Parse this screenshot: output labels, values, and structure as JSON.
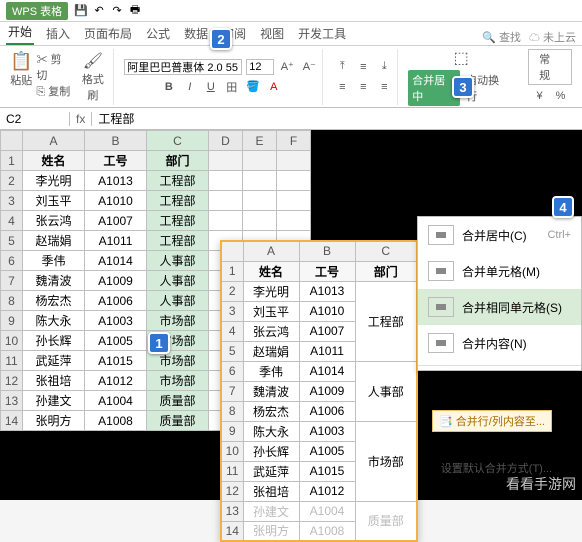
{
  "title": {
    "app": "WPS 表格"
  },
  "tabs": {
    "items": [
      "开始",
      "插入",
      "页面布局",
      "公式",
      "数据",
      "审阅",
      "视图",
      "开发工具"
    ],
    "active_index": 0,
    "right": {
      "search": "查找",
      "cloud": "未上云"
    }
  },
  "ribbon": {
    "paste": "粘贴",
    "copy": "复制",
    "formatpainter": "格式刷",
    "font_name": "阿里巴巴普惠体 2.0 55",
    "font_size": "12",
    "merge_label": "合并居中",
    "wrap_label": "自动换行",
    "general": "常规"
  },
  "formula": {
    "cell": "C2",
    "fx": "fx",
    "value": "工程部"
  },
  "columns": [
    "A",
    "B",
    "C",
    "D",
    "E",
    "F"
  ],
  "hdr": {
    "name": "姓名",
    "id": "工号",
    "dept": "部门"
  },
  "rows": [
    {
      "n": "李光明",
      "i": "A1013",
      "d": "工程部"
    },
    {
      "n": "刘玉平",
      "i": "A1010",
      "d": "工程部"
    },
    {
      "n": "张云鸿",
      "i": "A1007",
      "d": "工程部"
    },
    {
      "n": "赵瑞娟",
      "i": "A1011",
      "d": "工程部"
    },
    {
      "n": "季伟",
      "i": "A1014",
      "d": "人事部"
    },
    {
      "n": "魏清波",
      "i": "A1009",
      "d": "人事部"
    },
    {
      "n": "杨宏杰",
      "i": "A1006",
      "d": "人事部"
    },
    {
      "n": "陈大永",
      "i": "A1003",
      "d": "市场部"
    },
    {
      "n": "孙长辉",
      "i": "A1005",
      "d": "市场部"
    },
    {
      "n": "武延萍",
      "i": "A1015",
      "d": "市场部"
    },
    {
      "n": "张祖培",
      "i": "A1012",
      "d": "市场部"
    },
    {
      "n": "孙建文",
      "i": "A1004",
      "d": "质量部"
    },
    {
      "n": "张明方",
      "i": "A1008",
      "d": "质量部"
    }
  ],
  "overlay": {
    "cols": [
      "A",
      "B",
      "C"
    ],
    "hdr": {
      "name": "姓名",
      "id": "工号",
      "dept": "部门"
    },
    "groups": [
      {
        "dept": "工程部",
        "rows": [
          {
            "n": "李光明",
            "i": "A1013"
          },
          {
            "n": "刘玉平",
            "i": "A1010"
          },
          {
            "n": "张云鸿",
            "i": "A1007"
          },
          {
            "n": "赵瑞娟",
            "i": "A1011"
          }
        ]
      },
      {
        "dept": "人事部",
        "rows": [
          {
            "n": "季伟",
            "i": "A1014"
          },
          {
            "n": "魏清波",
            "i": "A1009"
          },
          {
            "n": "杨宏杰",
            "i": "A1006"
          }
        ]
      },
      {
        "dept": "市场部",
        "rows": [
          {
            "n": "陈大永",
            "i": "A1003"
          },
          {
            "n": "孙长辉",
            "i": "A1005"
          },
          {
            "n": "武延萍",
            "i": "A1015"
          },
          {
            "n": "张祖培",
            "i": "A1012"
          }
        ]
      },
      {
        "dept": "质量部",
        "pale": true,
        "rows": [
          {
            "n": "孙建文",
            "i": "A1004"
          },
          {
            "n": "张明方",
            "i": "A1008"
          }
        ]
      }
    ]
  },
  "menu": {
    "items": [
      {
        "label": "合并居中(C)",
        "shortcut": "Ctrl+"
      },
      {
        "label": "合并单元格(M)"
      },
      {
        "label": "合并相同单元格(S)",
        "selected": true
      },
      {
        "label": "合并内容(N)"
      }
    ],
    "footer": "设置默认合并方式(T)..."
  },
  "tip": "合并行/列内容至...",
  "callouts": {
    "c1": "1",
    "c2": "2",
    "c3": "3",
    "c4": "4"
  },
  "watermark": "看看手游网"
}
